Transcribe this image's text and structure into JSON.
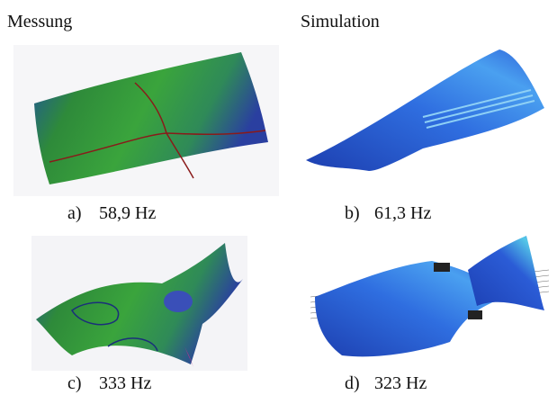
{
  "columns": [
    "Messung",
    "Simulation"
  ],
  "panels": [
    {
      "letter": "a)",
      "label": "58,9 Hz"
    },
    {
      "letter": "b)",
      "label": "61,3 Hz"
    },
    {
      "letter": "c)",
      "label": "333 Hz"
    },
    {
      "letter": "d)",
      "label": "323 Hz"
    }
  ]
}
